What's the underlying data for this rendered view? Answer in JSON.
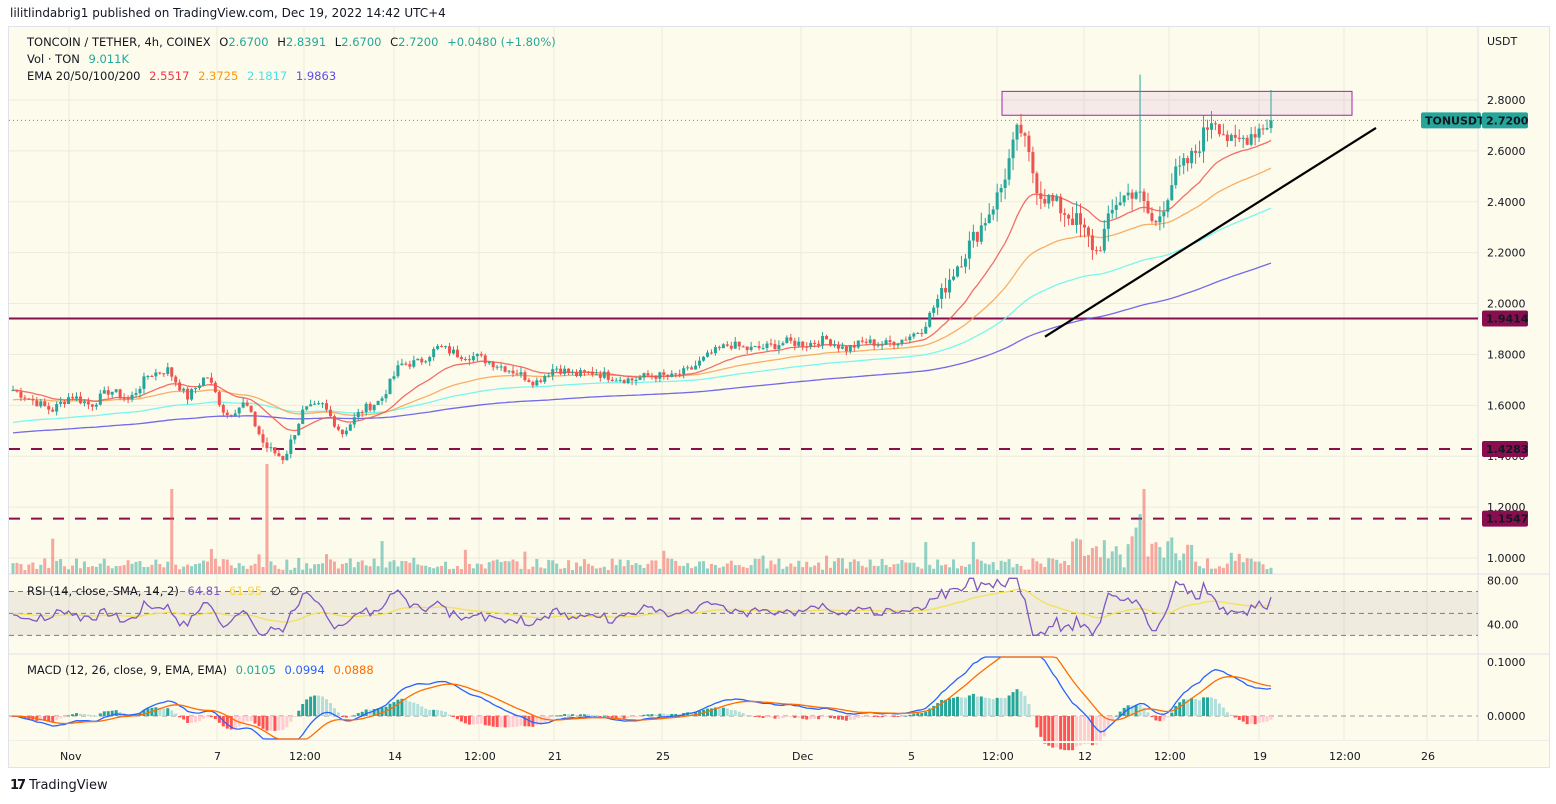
{
  "publisher": "lilitlindabrig1 published on TradingView.com, Dec 19, 2022 14:42 UTC+4",
  "header": {
    "symbol": "TONCOIN / TETHER, 4h, COINEX",
    "open_label": "O",
    "open": "2.6700",
    "high_label": "H",
    "high": "2.8391",
    "low_label": "L",
    "low": "2.6700",
    "close_label": "C",
    "close": "2.7200",
    "change": "+0.0480 (+1.80%)",
    "vol_label": "Vol · TON",
    "vol": "9.011K",
    "ema_label": "EMA 20/50/100/200",
    "ema20": "2.5517",
    "ema50": "2.3725",
    "ema100": "2.1817",
    "ema200": "1.9863"
  },
  "rsi": {
    "label": "RSI (14, close, SMA, 14, 2)",
    "value": "64.81",
    "sma": "61.95",
    "extra1": "∅",
    "extra2": "∅"
  },
  "macd": {
    "label": "MACD (12, 26, close, 9, EMA, EMA)",
    "hist": "0.0105",
    "macd": "0.0994",
    "signal": "0.0888"
  },
  "price_axis": {
    "currency": "USDT",
    "ticks": [
      "2.8000",
      "2.6000",
      "2.4000",
      "2.2000",
      "2.0000",
      "1.8000",
      "1.6000",
      "1.4000",
      "1.2000",
      "1.0000"
    ]
  },
  "rsi_axis": {
    "ticks": [
      "80.00",
      "40.00"
    ]
  },
  "macd_axis": {
    "ticks": [
      "0.1000",
      "0.0000"
    ]
  },
  "time_axis": {
    "ticks": [
      "Nov",
      "7",
      "12:00",
      "14",
      "12:00",
      "21",
      "25",
      "Dec",
      "5",
      "12:00",
      "12",
      "12:00",
      "19",
      "12:00",
      "26"
    ]
  },
  "badges": {
    "symbol": "TONUSDT",
    "last": "2.7200",
    "level1": "1.9414",
    "level2": "1.4283",
    "level3": "1.1547"
  },
  "brand": "TradingView",
  "colors": {
    "up": "#26a69a",
    "down": "#ef5350",
    "level": "#880e4f",
    "ema20": "#f0554f",
    "ema50": "#f7a150",
    "ema100": "#63f5f0",
    "ema200": "#5b50e8",
    "rsi": "#7e57c2",
    "rsi_sma": "#f5e05a",
    "macd": "#2962ff",
    "signal": "#ff6d00",
    "zone": "#9c27b0"
  },
  "chart_data": {
    "type": "candlestick",
    "title": "TONCOIN / TETHER, 4h, COINEX",
    "ylabel": "USDT",
    "ylim": [
      0.95,
      2.95
    ],
    "x_ticks": [
      "Nov",
      "7",
      "12:00",
      "14",
      "12:00",
      "21",
      "25",
      "Dec",
      "5",
      "12:00",
      "12",
      "12:00",
      "19",
      "12:00",
      "26"
    ],
    "last": {
      "open": 2.67,
      "high": 2.8391,
      "low": 2.67,
      "close": 2.72
    },
    "horizontal_levels": [
      {
        "value": 1.9414,
        "style": "solid"
      },
      {
        "value": 1.4283,
        "style": "dashed"
      },
      {
        "value": 1.1547,
        "style": "dashed"
      }
    ],
    "resistance_zone": [
      2.74,
      2.83
    ],
    "trendline": {
      "from": [
        1.87,
        "Dec 9"
      ],
      "to": [
        2.69,
        "Dec 22"
      ]
    },
    "ema_last": {
      "ema20": 2.5517,
      "ema50": 2.3725,
      "ema100": 2.1817,
      "ema200": 1.9863
    },
    "price_path": [
      1.66,
      1.62,
      1.58,
      1.64,
      1.6,
      1.66,
      1.62,
      1.72,
      1.74,
      1.63,
      1.72,
      1.56,
      1.61,
      1.44,
      1.39,
      1.58,
      1.6,
      1.49,
      1.58,
      1.62,
      1.76,
      1.77,
      1.83,
      1.8,
      1.79,
      1.76,
      1.73,
      1.69,
      1.75,
      1.72,
      1.73,
      1.71,
      1.7,
      1.72,
      1.71,
      1.74,
      1.8,
      1.84,
      1.82,
      1.83,
      1.85,
      1.84,
      1.86,
      1.82,
      1.85,
      1.84,
      1.86,
      1.9,
      2.05,
      2.18,
      2.3,
      2.44,
      2.7,
      2.44,
      2.38,
      2.32,
      2.2,
      2.4,
      2.45,
      2.3,
      2.5,
      2.58,
      2.74,
      2.62,
      2.67,
      2.72
    ],
    "rsi": {
      "value": 64.81,
      "sma": 61.95,
      "bands": [
        70,
        50,
        30
      ],
      "axis": [
        80,
        40
      ]
    },
    "macd": {
      "hist": 0.0105,
      "macd": 0.0994,
      "signal": 0.0888
    }
  }
}
